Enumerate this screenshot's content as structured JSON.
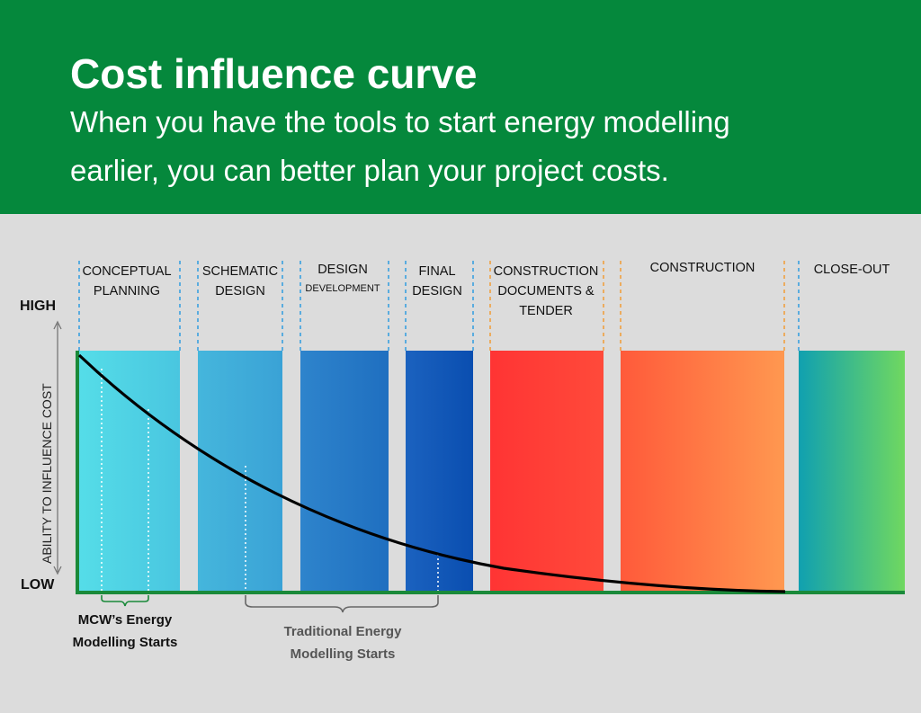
{
  "header": {
    "title": "Cost influence curve",
    "subtitle_line1": "When you have the tools to start energy modelling",
    "subtitle_line2": "earlier, you  can better plan your project costs."
  },
  "colors": {
    "header_bg": "#05883c",
    "axis_green": "#1a8a3a",
    "divider_blue": "#3aa0e0",
    "divider_orange": "#f0a040",
    "curve": "#000000"
  },
  "axis": {
    "high_label": "HIGH",
    "low_label": "LOW",
    "y_title": "ABILITY TO INFLUENCE COST"
  },
  "phases": [
    {
      "id": "conceptual-planning",
      "line1": "CONCEPTUAL",
      "line2": "PLANNING",
      "line3": "",
      "grad": [
        "#55dde8",
        "#49c6e0"
      ]
    },
    {
      "id": "schematic-design",
      "line1": "SCHEMATIC",
      "line2": "DESIGN",
      "line3": "",
      "grad": [
        "#45b6dc",
        "#3aa2d6"
      ]
    },
    {
      "id": "design-development",
      "line1": "DESIGN",
      "line2": "DEVELOPMENT",
      "line3": "",
      "grad": [
        "#2e84cc",
        "#1f6fc0"
      ]
    },
    {
      "id": "final-design",
      "line1": "FINAL",
      "line2": "DESIGN",
      "line3": "",
      "grad": [
        "#1b62bf",
        "#0a4eb0"
      ]
    },
    {
      "id": "construction-documents-tender",
      "line1": "CONSTRUCTION",
      "line2": "DOCUMENTS &",
      "line3": "TENDER",
      "grad": [
        "#ff3434",
        "#ff4a3a"
      ]
    },
    {
      "id": "construction",
      "line1": "CONSTRUCTION",
      "line2": "",
      "line3": "",
      "grad": [
        "#ff5a3a",
        "#ff9850"
      ]
    },
    {
      "id": "close-out",
      "line1": "CLOSE-OUT",
      "line2": "",
      "line3": "",
      "grad": [
        "#10a0b0",
        "#70d860"
      ]
    }
  ],
  "annotations": {
    "mcw_line1": "MCW’s Energy",
    "mcw_line2": "Modelling Starts",
    "traditional_line1": "Traditional Energy",
    "traditional_line2": "Modelling Starts"
  }
}
